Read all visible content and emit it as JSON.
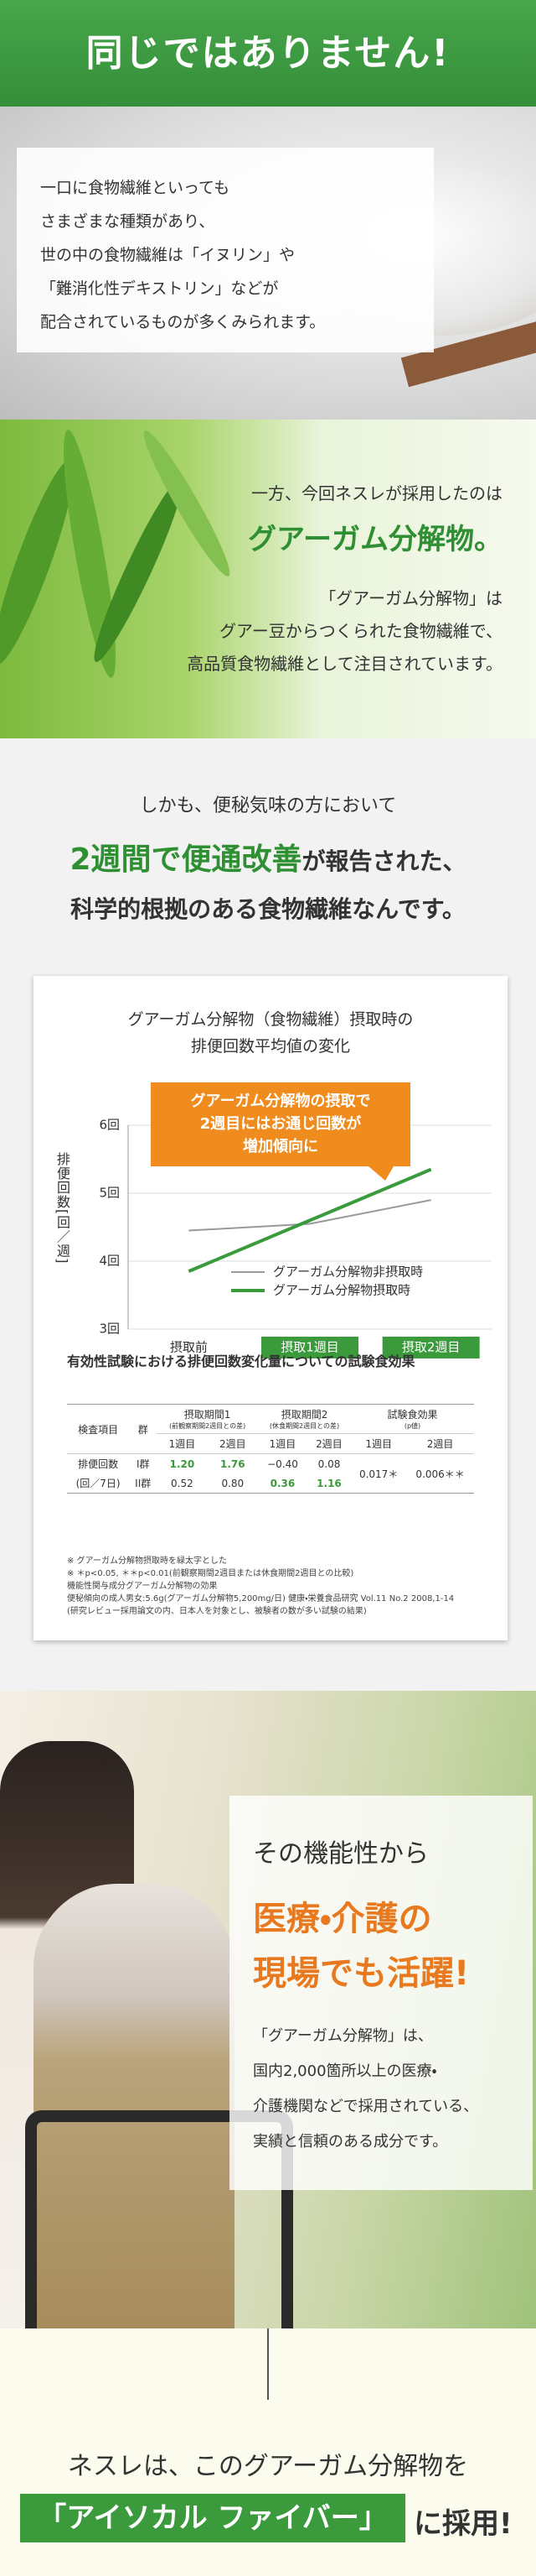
{
  "header": {
    "title": "同じではありません!"
  },
  "intro": {
    "lines": [
      "一口に食物繊維といっても",
      "さまざまな種類があり、",
      "世の中の食物繊維は「イヌリン」や",
      "「難消化性デキストリン」などが",
      "配合されているものが多くみられます。"
    ]
  },
  "adopted": {
    "lead": "一方、今回ネスレが採用したのは",
    "highlight": "グアーガム分解物。",
    "lines": [
      "「グアーガム分解物」は",
      "グアー豆からつくられた食物繊維で、",
      "高品質食物繊維として注目されています。"
    ]
  },
  "evidence": {
    "lead": "しかも、便秘気味の方において",
    "highlight": "2週間で便通改善",
    "highlight_rest": "が報告された、",
    "tail": "科学的根拠のある食物繊維なんです。"
  },
  "chart_data": {
    "type": "line",
    "title": [
      "グアーガム分解物（食物繊維）摂取時の",
      "排便回数平均値の変化"
    ],
    "annotation": [
      "グアーガム分解物の摂取で",
      "2週目にはお通じ回数が",
      "増加傾向に"
    ],
    "y_label": "排便回数[回／週]",
    "categories": [
      "摂取前",
      "摂取1週目",
      "摂取2週目"
    ],
    "series": [
      {
        "name": "グアーガム分解物非摂取時",
        "color": "#9a9a9a",
        "values": [
          4.45,
          4.55,
          4.9
        ]
      },
      {
        "name": "グアーガム分解物摂取時",
        "color": "#3a9a3c",
        "values": [
          3.85,
          4.6,
          5.35
        ]
      }
    ],
    "ylim": [
      3,
      6
    ],
    "yticks": [
      {
        "value": 3,
        "label": "3回"
      },
      {
        "value": 4,
        "label": "4回"
      },
      {
        "value": 5,
        "label": "5回"
      },
      {
        "value": 6,
        "label": "6回"
      }
    ],
    "grid": true
  },
  "study_table": {
    "title": "有効性試験における排便回数変化量についての試験食効果",
    "headers": {
      "item": "検査項目",
      "group": "群",
      "period1": "摂取期間1",
      "period1_note": "(前観察期間2週目との差)",
      "period2": "摂取期間2",
      "period2_note": "(休食期間2週目との差)",
      "effect": "試験食効果",
      "effect_note": "(p値)",
      "weeks": [
        "1週目",
        "2週目",
        "1週目",
        "2週目",
        "1週目",
        "2週目"
      ]
    },
    "rows": [
      {
        "item": "排便回数",
        "group": "I群",
        "values": [
          "1.20",
          "1.76",
          "−0.40",
          "0.08"
        ]
      },
      {
        "item": "(回／7日)",
        "group": "II群",
        "values": [
          "0.52",
          "0.80",
          "0.36",
          "1.16"
        ]
      }
    ],
    "effect": [
      "0.017＊",
      "0.006＊＊"
    ],
    "notes": [
      "※ グアーガム分解物摂取時を緑太字とした",
      "※ ＊p<0.05, ＊＊p<0.01(前観察期間2週目または休食期間2週目との比較)",
      "機能性関与成分グアーガム分解物の効果",
      "便秘傾向の成人男女:5.6g(グアーガム分解物5,200mg/日) 健康・栄養食品研究 Vol.11 No.2 2008,1-14",
      "(研究レビュー採用論文の内、日本人を対象とし、被験者の数が多い試験の結果)"
    ]
  },
  "usage": {
    "lead": "その機能性から",
    "highlight": [
      "医療・介護の",
      "現場でも活躍!"
    ],
    "lines": [
      "「グアーガム分解物」は、",
      "国内2,000箇所以上の医療・",
      "介護機関などで採用されている、",
      "実績と信頼のある成分です。"
    ]
  },
  "closing": {
    "lead": "ネスレは、このグアーガム分解物を",
    "product": "「アイソカル ファイバー」",
    "tail": "に採用!"
  }
}
